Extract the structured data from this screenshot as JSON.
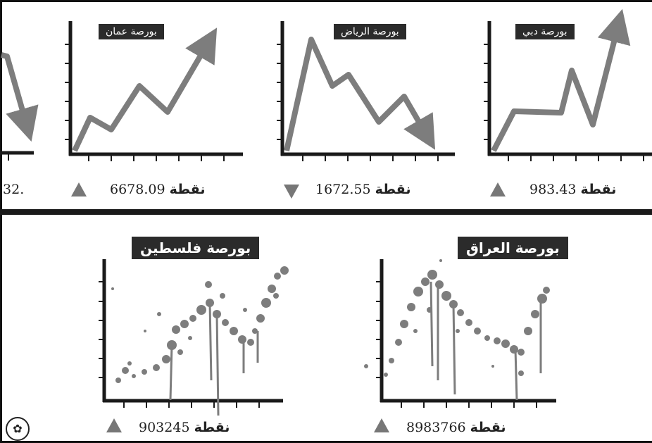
{
  "top_charts": [
    {
      "id": "partial",
      "value": ".32",
      "trend": "down"
    },
    {
      "id": "amman",
      "title": "بورصة عمان",
      "value": "6678.09",
      "unit": "نقطة",
      "trend": "up"
    },
    {
      "id": "riyadh",
      "title": "بورصة الرياض",
      "value": "1672.55",
      "unit": "نقطة",
      "trend": "down"
    },
    {
      "id": "dubai",
      "title": "بورصة دبي",
      "value": "983.43",
      "unit": "نقطة",
      "trend": "up"
    }
  ],
  "bottom_charts": [
    {
      "id": "palestine",
      "title": "بورصة فلسطين",
      "value": "903245",
      "unit": "نقطة",
      "trend": "up"
    },
    {
      "id": "iraq",
      "title": "بورصة العراق",
      "value": "8983766",
      "unit": "نقطة",
      "trend": "up"
    }
  ],
  "colors": {
    "line": "#7d7d7d",
    "axis": "#1a1a1a",
    "label_bg": "#2b2b2b",
    "arrow": "#777777"
  },
  "logo_icon": "emblem-icon"
}
